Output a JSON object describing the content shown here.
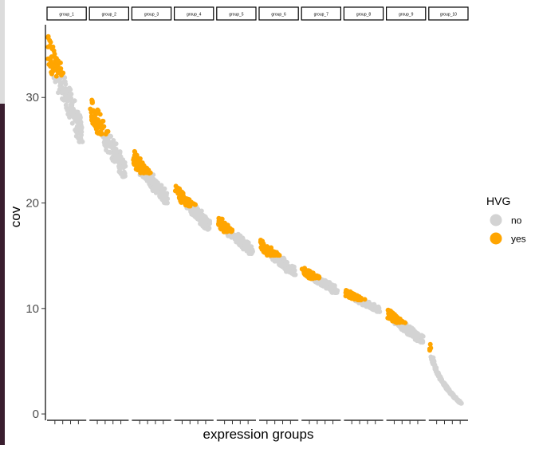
{
  "chart_data": {
    "type": "scatter",
    "xlabel": "expression groups",
    "ylabel": "cov",
    "ylim": [
      -0.6,
      37.2
    ],
    "yticks": [
      0,
      10,
      20,
      30
    ],
    "facets": [
      "group_1",
      "group_2",
      "group_3",
      "group_4",
      "group_5",
      "group_6",
      "group_7",
      "group_8",
      "group_9",
      "group_10"
    ],
    "legend": {
      "title": "HVG",
      "position": "right",
      "entries": [
        {
          "label": "no",
          "color": "#d3d3d3"
        },
        {
          "label": "yes",
          "color": "#ffa500"
        }
      ]
    },
    "groups": [
      {
        "name": "group_1",
        "cov_high": 36.0,
        "cov_low": 25.8,
        "hvg_min_cov": 32.0
      },
      {
        "name": "group_2",
        "cov_high": 30.0,
        "cov_low": 22.5,
        "hvg_min_cov": 26.5
      },
      {
        "name": "group_3",
        "cov_high": 25.0,
        "cov_low": 20.0,
        "hvg_min_cov": 22.8
      },
      {
        "name": "group_4",
        "cov_high": 21.8,
        "cov_low": 17.5,
        "hvg_min_cov": 19.7
      },
      {
        "name": "group_5",
        "cov_high": 18.8,
        "cov_low": 15.2,
        "hvg_min_cov": 17.2
      },
      {
        "name": "group_6",
        "cov_high": 16.6,
        "cov_low": 13.2,
        "hvg_min_cov": 15.0
      },
      {
        "name": "group_7",
        "cov_high": 14.0,
        "cov_low": 11.5,
        "hvg_min_cov": 12.8
      },
      {
        "name": "group_8",
        "cov_high": 11.8,
        "cov_low": 9.7,
        "hvg_min_cov": 10.8
      },
      {
        "name": "group_9",
        "cov_high": 10.0,
        "cov_low": 6.8,
        "hvg_min_cov": 8.6
      },
      {
        "name": "group_10",
        "cov_high": 7.0,
        "cov_low": 1.0,
        "hvg_min_cov": 5.5
      }
    ]
  }
}
